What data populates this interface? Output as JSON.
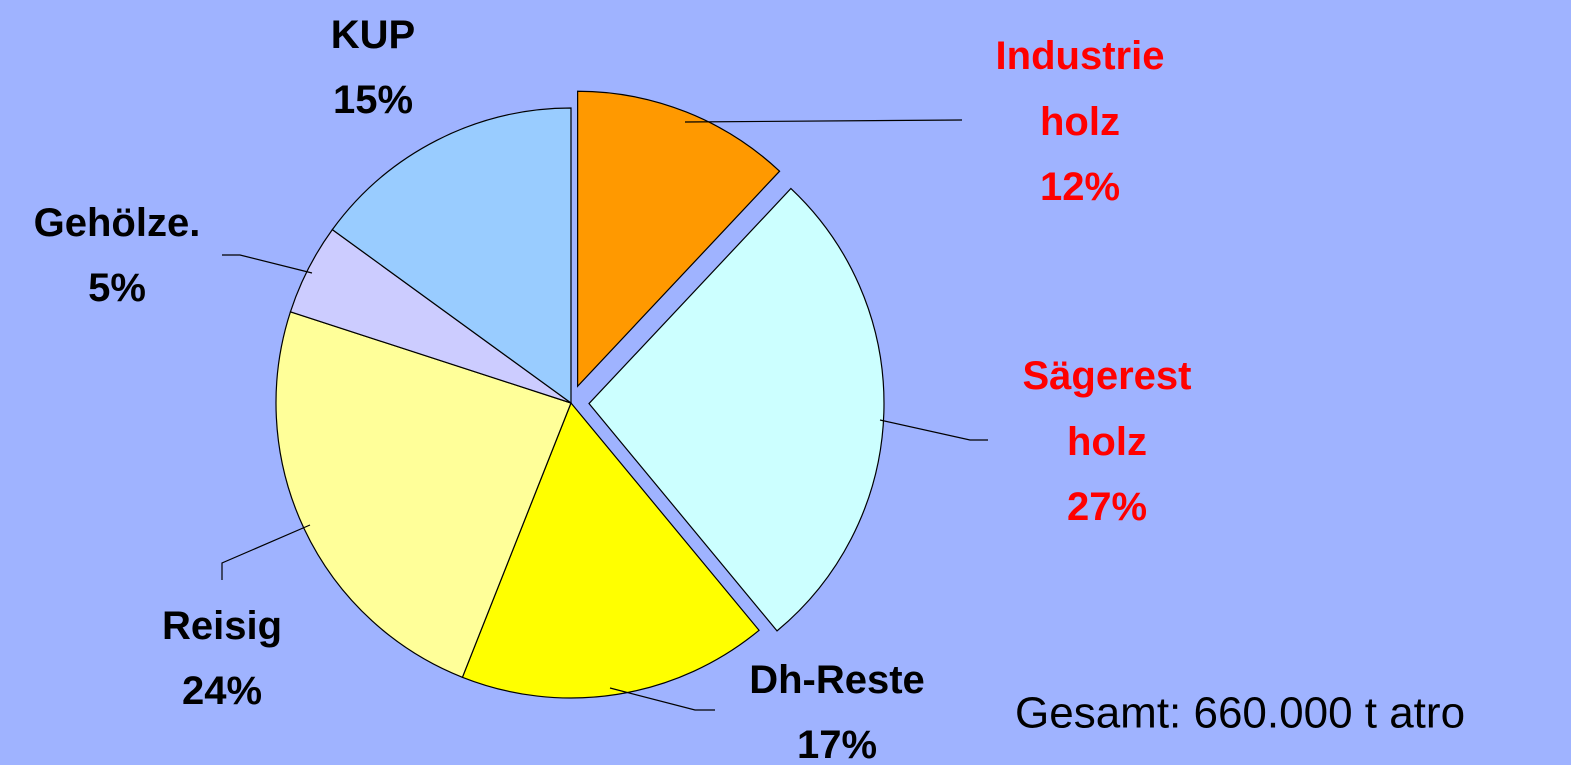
{
  "chart_data": {
    "type": "pie",
    "categories": [
      "Industrie holz",
      "Sägerest holz",
      "Dh-Reste",
      "Reisig",
      "Gehölze.",
      "KUP"
    ],
    "values": [
      12,
      27,
      17,
      24,
      5,
      15
    ],
    "value_labels": [
      "12%",
      "27%",
      "17%",
      "24%",
      "5%",
      "15%"
    ],
    "colors": [
      "#ff9900",
      "#ccffff",
      "#ffff00",
      "#ffff99",
      "#ccccff",
      "#99ccff"
    ],
    "label_colors": [
      "#ff0000",
      "#ff0000",
      "#000000",
      "#000000",
      "#000000",
      "#000000"
    ],
    "explode": [
      true,
      true,
      false,
      false,
      false,
      false
    ],
    "annotation": "Gesamt: 660.000 t atro"
  }
}
